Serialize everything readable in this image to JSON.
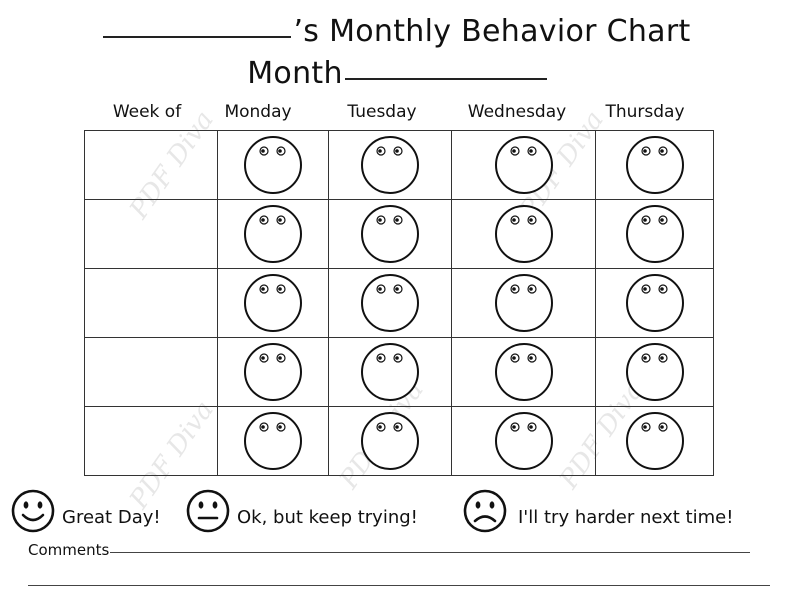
{
  "header": {
    "title_suffix": "’s Monthly Behavior Chart",
    "month_label": "Month"
  },
  "columns": [
    "Week of",
    "Monday",
    "Tuesday",
    "Wednesday",
    "Thursday"
  ],
  "row_count": 5,
  "legend": [
    {
      "label": "Great Day!",
      "icon": "smiley-face-icon"
    },
    {
      "label": "Ok, but keep trying!",
      "icon": "neutral-face-icon"
    },
    {
      "label": "I'll try harder next time!",
      "icon": "frown-face-icon"
    }
  ],
  "comments_label": "Comments",
  "watermark_text": "PDF Diva"
}
